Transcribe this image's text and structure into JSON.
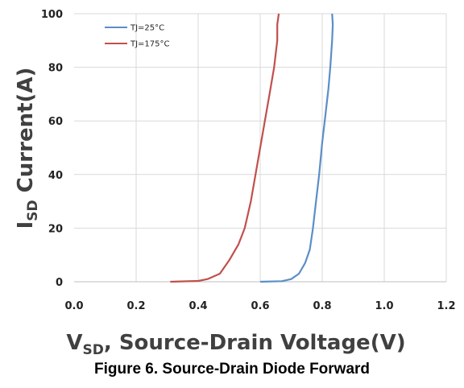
{
  "chart_data": {
    "type": "line",
    "x_sub": "SD",
    "y_sub": "SD",
    "xlabel": "V, Source-Drain Voltage(V)",
    "ylabel": "I Current(A)",
    "xlabel_parts": [
      "V",
      "SD",
      ", Source-Drain Voltage(V)"
    ],
    "ylabel_parts": [
      "I",
      "SD",
      " Current(A)"
    ],
    "xlim": [
      0.0,
      1.2
    ],
    "ylim": [
      0,
      100
    ],
    "x_ticks": [
      "0.0",
      "0.2",
      "0.4",
      "0.6",
      "0.8",
      "1.0",
      "1.2"
    ],
    "y_ticks": [
      "0",
      "20",
      "40",
      "60",
      "80",
      "100"
    ],
    "grid": true,
    "legend_position": "top-left",
    "series": [
      {
        "name": "TJ=25°C",
        "color": "#5b8ec8",
        "points": [
          [
            0.6,
            0.0
          ],
          [
            0.67,
            0.2
          ],
          [
            0.7,
            1.0
          ],
          [
            0.725,
            3.0
          ],
          [
            0.745,
            7.0
          ],
          [
            0.76,
            12.0
          ],
          [
            0.77,
            20.0
          ],
          [
            0.78,
            30.0
          ],
          [
            0.79,
            40.0
          ],
          [
            0.8,
            52.0
          ],
          [
            0.81,
            62.0
          ],
          [
            0.82,
            72.0
          ],
          [
            0.826,
            80.0
          ],
          [
            0.832,
            90.0
          ],
          [
            0.834,
            96.0
          ],
          [
            0.832,
            100.0
          ]
        ]
      },
      {
        "name": "TJ=175°C",
        "color": "#c0504d",
        "points": [
          [
            0.31,
            0.0
          ],
          [
            0.4,
            0.3
          ],
          [
            0.43,
            1.0
          ],
          [
            0.47,
            3.0
          ],
          [
            0.5,
            8.0
          ],
          [
            0.53,
            14.0
          ],
          [
            0.55,
            20.0
          ],
          [
            0.57,
            30.0
          ],
          [
            0.585,
            40.0
          ],
          [
            0.6,
            50.0
          ],
          [
            0.615,
            60.0
          ],
          [
            0.63,
            70.0
          ],
          [
            0.645,
            80.0
          ],
          [
            0.655,
            90.0
          ],
          [
            0.655,
            96.0
          ],
          [
            0.66,
            100.0
          ]
        ]
      }
    ]
  },
  "caption": "Figure 6. Source-Drain Diode Forward"
}
